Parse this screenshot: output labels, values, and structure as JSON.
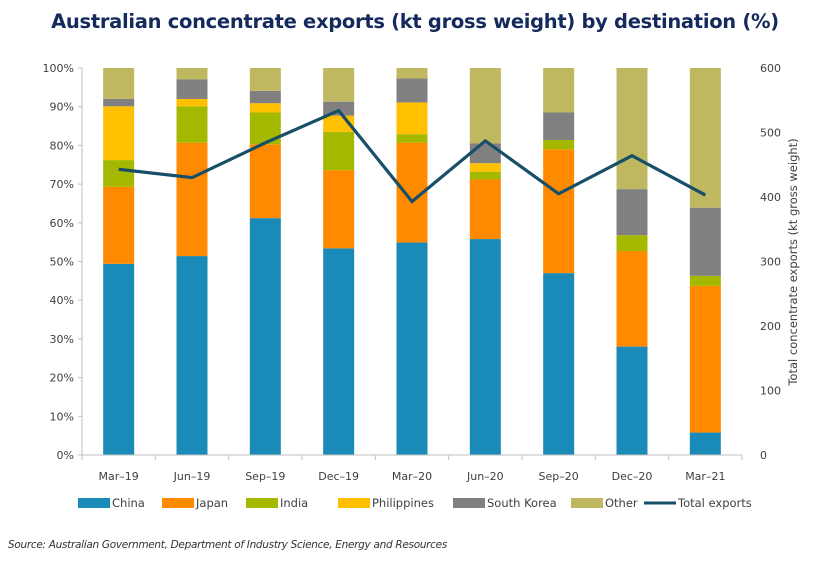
{
  "chart_data": {
    "type": "bar",
    "stacked": true,
    "title": "Australian concentrate exports (kt gross weight) by destination (%)",
    "categories": [
      "Mar–19",
      "Jun–19",
      "Sep–19",
      "Dec–19",
      "Mar–20",
      "Jun–20",
      "Sep–20",
      "Dec–20",
      "Mar–21"
    ],
    "series": [
      {
        "name": "China",
        "color": "#1a8ab8",
        "values": [
          49.4,
          51.4,
          61.2,
          53.4,
          54.9,
          55.8,
          47.0,
          28.0,
          5.8
        ]
      },
      {
        "name": "Japan",
        "color": "#ff8a00",
        "values": [
          19.9,
          29.3,
          19.1,
          20.2,
          25.8,
          15.4,
          32.0,
          24.7,
          37.9
        ]
      },
      {
        "name": "India",
        "color": "#a5b800",
        "values": [
          6.9,
          9.4,
          8.2,
          9.9,
          2.2,
          2.0,
          2.4,
          4.1,
          2.6
        ]
      },
      {
        "name": "Philippines",
        "color": "#ffc000",
        "values": [
          13.9,
          1.9,
          2.4,
          4.2,
          8.2,
          2.2,
          0,
          0,
          0
        ]
      },
      {
        "name": "South Korea",
        "color": "#808080",
        "values": [
          1.9,
          5.1,
          3.2,
          3.6,
          6.2,
          5.1,
          7.1,
          11.9,
          17.6
        ]
      },
      {
        "name": "Other",
        "color": "#bfb860",
        "values": [
          8.0,
          2.9,
          5.9,
          8.7,
          2.7,
          19.5,
          11.5,
          31.3,
          36.1
        ]
      }
    ],
    "line_series": {
      "name": "Total exports",
      "color": "#174e68",
      "axis": "right",
      "values": [
        443,
        430,
        484,
        534,
        393,
        487,
        405,
        464,
        403
      ]
    },
    "left_axis": {
      "ylim": [
        0,
        100
      ],
      "ticks": [
        "0%",
        "10%",
        "20%",
        "30%",
        "40%",
        "50%",
        "60%",
        "70%",
        "80%",
        "90%",
        "100%"
      ]
    },
    "right_axis": {
      "ylim": [
        0,
        600
      ],
      "ticks": [
        "0",
        "100",
        "200",
        "300",
        "400",
        "500",
        "600"
      ],
      "label": "Total concentrate exports (kt gross weight)"
    },
    "legend": {
      "placement": "bottom",
      "entries": [
        "China",
        "Japan",
        "India",
        "Philippines",
        "South Korea",
        "Other",
        "Total exports"
      ]
    },
    "grid": false
  },
  "source": "Source: Australian Government, Department of Industry Science, Energy and Resources"
}
